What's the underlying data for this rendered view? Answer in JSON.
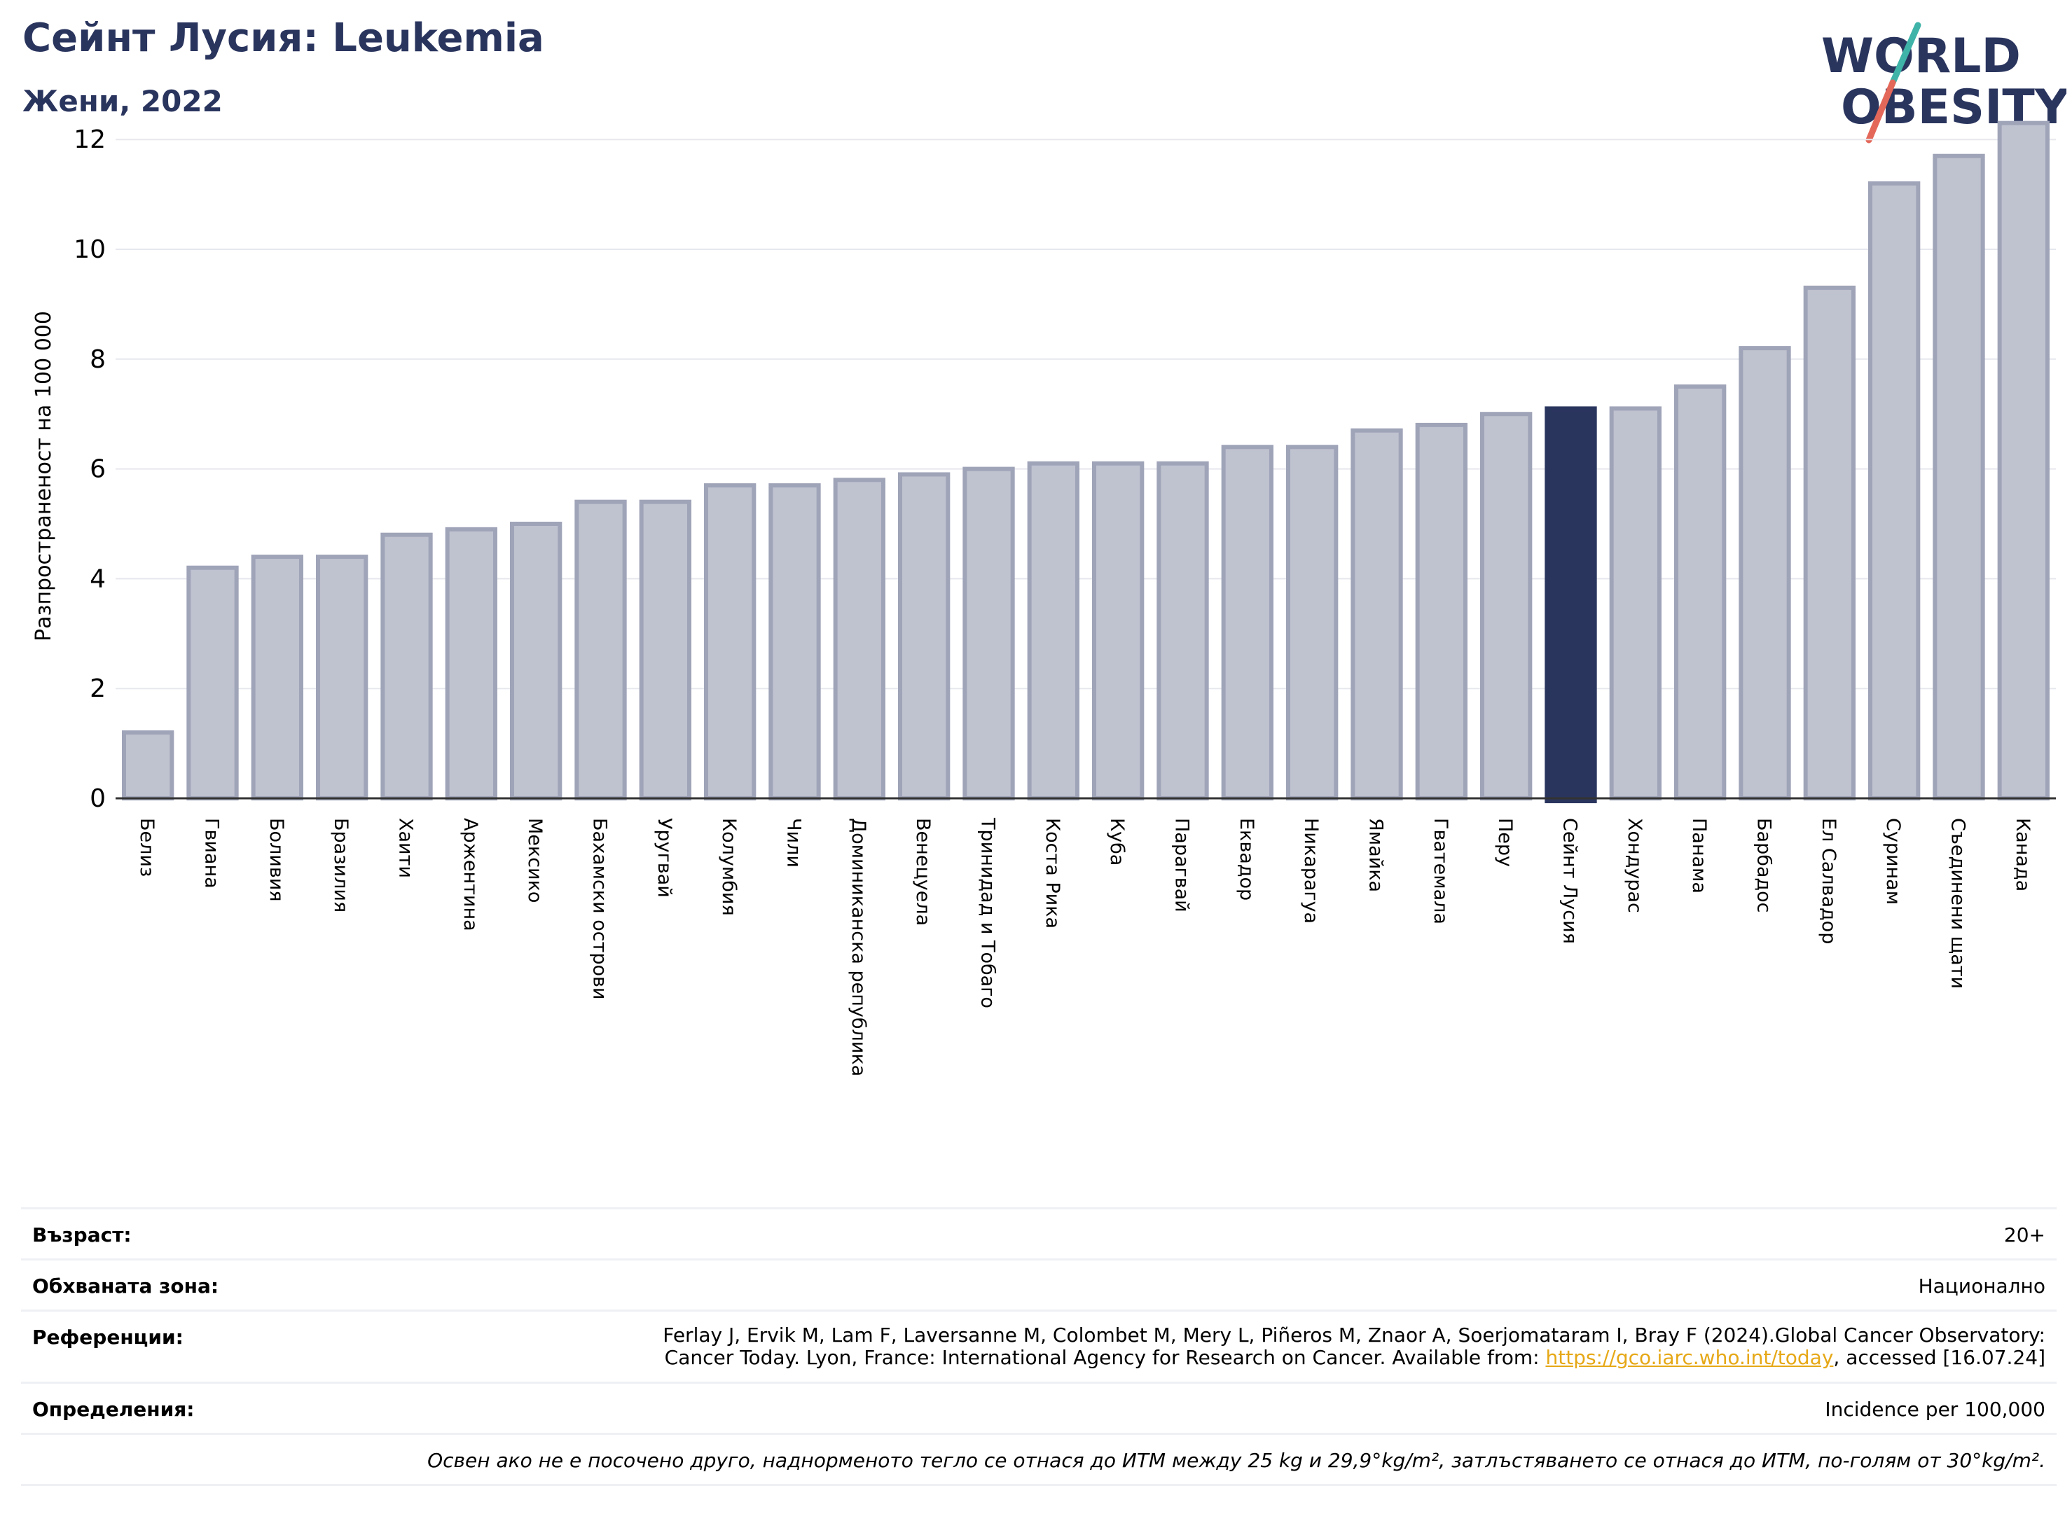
{
  "header": {
    "title": "Сейнт Лусия: Leukemia",
    "subtitle": "Жени, 2022"
  },
  "logo": {
    "line1": "WORLD",
    "line2": "OBESITY",
    "text_color": "#2a355e",
    "slash_colors": [
      "#3fb3a8",
      "#e4685a"
    ]
  },
  "colors": {
    "bar": "#bfc2cf",
    "bar_stroke": "#9fa4b8",
    "highlight": "#2a355e",
    "title": "#2a355e",
    "link": "#e6a817"
  },
  "chart_data": {
    "type": "bar",
    "ylabel": "Разпространеност  на 100 000",
    "ylim": [
      0,
      12.5
    ],
    "yticks": [
      0,
      2,
      4,
      6,
      8,
      10,
      12
    ],
    "grid": true,
    "highlight_category": "Сейнт Лусия",
    "categories": [
      "Белиз",
      "Гвиана",
      "Боливия",
      "Бразилия",
      "Хаити",
      "Аржентина",
      "Мексико",
      "Бахамски острови",
      "Уругвай",
      "Колумбия",
      "Чили",
      "Доминиканска република",
      "Венецуела",
      "Тринидад и Тобаго",
      "Коста Рика",
      "Куба",
      "Парагвай",
      "Еквадор",
      "Никарагуа",
      "Ямайка",
      "Гватемала",
      "Перу",
      "Сейнт Лусия",
      "Хондурас",
      "Панама",
      "Барбадос",
      "Ел Салвадор",
      "Суринам",
      "Съединени щати",
      "Канада"
    ],
    "values": [
      1.2,
      4.2,
      4.4,
      4.4,
      4.8,
      4.9,
      5.0,
      5.4,
      5.4,
      5.7,
      5.7,
      5.8,
      5.9,
      6.0,
      6.1,
      6.1,
      6.1,
      6.4,
      6.4,
      6.7,
      6.8,
      7.0,
      7.1,
      7.1,
      7.5,
      8.2,
      9.3,
      11.2,
      11.7,
      12.3
    ]
  },
  "info": {
    "age_label": "Възраст:",
    "age_value": "20+",
    "area_label": "Обхваната зона:",
    "area_value": "Национално",
    "refs_label": "Референции:",
    "refs_line1": "Ferlay J, Ervik M, Lam F, Laversanne M, Colombet M, Mery L, Piñeros M, Znaor A, Soerjomataram I, Bray F (2024).Global Cancer Observatory:",
    "refs_line2_pre": "Cancer Today. Lyon, France: International Agency for Research on Cancer. Available from: ",
    "refs_link": "https://gco.iarc.who.int/today",
    "refs_line2_post": ", accessed [16.07.24]",
    "defs_label": "Определения:",
    "defs_value": "Incidence per 100,000",
    "note": "Освен ако не е посочено друго, наднормeното тегло се отнася до ИТМ между 25 kg и 29,9°kg/m², затлъстяването се отнася до ИТМ, по-голям от 30°kg/m²."
  }
}
